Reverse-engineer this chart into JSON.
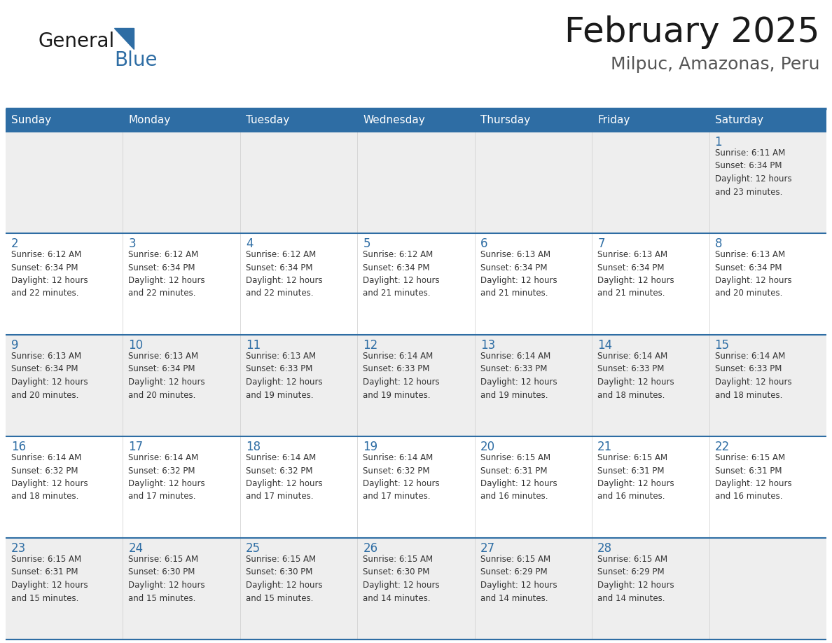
{
  "title": "February 2025",
  "subtitle": "Milpuc, Amazonas, Peru",
  "header_bg_color": "#2E6DA4",
  "header_text_color": "#FFFFFF",
  "cell_bg_even": "#EEEEEE",
  "cell_bg_odd": "#FFFFFF",
  "day_number_color": "#2E6DA4",
  "text_color": "#333333",
  "border_color": "#2E6DA4",
  "days_of_week": [
    "Sunday",
    "Monday",
    "Tuesday",
    "Wednesday",
    "Thursday",
    "Friday",
    "Saturday"
  ],
  "weeks": [
    [
      {
        "day": "",
        "info": ""
      },
      {
        "day": "",
        "info": ""
      },
      {
        "day": "",
        "info": ""
      },
      {
        "day": "",
        "info": ""
      },
      {
        "day": "",
        "info": ""
      },
      {
        "day": "",
        "info": ""
      },
      {
        "day": "1",
        "info": "Sunrise: 6:11 AM\nSunset: 6:34 PM\nDaylight: 12 hours\nand 23 minutes."
      }
    ],
    [
      {
        "day": "2",
        "info": "Sunrise: 6:12 AM\nSunset: 6:34 PM\nDaylight: 12 hours\nand 22 minutes."
      },
      {
        "day": "3",
        "info": "Sunrise: 6:12 AM\nSunset: 6:34 PM\nDaylight: 12 hours\nand 22 minutes."
      },
      {
        "day": "4",
        "info": "Sunrise: 6:12 AM\nSunset: 6:34 PM\nDaylight: 12 hours\nand 22 minutes."
      },
      {
        "day": "5",
        "info": "Sunrise: 6:12 AM\nSunset: 6:34 PM\nDaylight: 12 hours\nand 21 minutes."
      },
      {
        "day": "6",
        "info": "Sunrise: 6:13 AM\nSunset: 6:34 PM\nDaylight: 12 hours\nand 21 minutes."
      },
      {
        "day": "7",
        "info": "Sunrise: 6:13 AM\nSunset: 6:34 PM\nDaylight: 12 hours\nand 21 minutes."
      },
      {
        "day": "8",
        "info": "Sunrise: 6:13 AM\nSunset: 6:34 PM\nDaylight: 12 hours\nand 20 minutes."
      }
    ],
    [
      {
        "day": "9",
        "info": "Sunrise: 6:13 AM\nSunset: 6:34 PM\nDaylight: 12 hours\nand 20 minutes."
      },
      {
        "day": "10",
        "info": "Sunrise: 6:13 AM\nSunset: 6:34 PM\nDaylight: 12 hours\nand 20 minutes."
      },
      {
        "day": "11",
        "info": "Sunrise: 6:13 AM\nSunset: 6:33 PM\nDaylight: 12 hours\nand 19 minutes."
      },
      {
        "day": "12",
        "info": "Sunrise: 6:14 AM\nSunset: 6:33 PM\nDaylight: 12 hours\nand 19 minutes."
      },
      {
        "day": "13",
        "info": "Sunrise: 6:14 AM\nSunset: 6:33 PM\nDaylight: 12 hours\nand 19 minutes."
      },
      {
        "day": "14",
        "info": "Sunrise: 6:14 AM\nSunset: 6:33 PM\nDaylight: 12 hours\nand 18 minutes."
      },
      {
        "day": "15",
        "info": "Sunrise: 6:14 AM\nSunset: 6:33 PM\nDaylight: 12 hours\nand 18 minutes."
      }
    ],
    [
      {
        "day": "16",
        "info": "Sunrise: 6:14 AM\nSunset: 6:32 PM\nDaylight: 12 hours\nand 18 minutes."
      },
      {
        "day": "17",
        "info": "Sunrise: 6:14 AM\nSunset: 6:32 PM\nDaylight: 12 hours\nand 17 minutes."
      },
      {
        "day": "18",
        "info": "Sunrise: 6:14 AM\nSunset: 6:32 PM\nDaylight: 12 hours\nand 17 minutes."
      },
      {
        "day": "19",
        "info": "Sunrise: 6:14 AM\nSunset: 6:32 PM\nDaylight: 12 hours\nand 17 minutes."
      },
      {
        "day": "20",
        "info": "Sunrise: 6:15 AM\nSunset: 6:31 PM\nDaylight: 12 hours\nand 16 minutes."
      },
      {
        "day": "21",
        "info": "Sunrise: 6:15 AM\nSunset: 6:31 PM\nDaylight: 12 hours\nand 16 minutes."
      },
      {
        "day": "22",
        "info": "Sunrise: 6:15 AM\nSunset: 6:31 PM\nDaylight: 12 hours\nand 16 minutes."
      }
    ],
    [
      {
        "day": "23",
        "info": "Sunrise: 6:15 AM\nSunset: 6:31 PM\nDaylight: 12 hours\nand 15 minutes."
      },
      {
        "day": "24",
        "info": "Sunrise: 6:15 AM\nSunset: 6:30 PM\nDaylight: 12 hours\nand 15 minutes."
      },
      {
        "day": "25",
        "info": "Sunrise: 6:15 AM\nSunset: 6:30 PM\nDaylight: 12 hours\nand 15 minutes."
      },
      {
        "day": "26",
        "info": "Sunrise: 6:15 AM\nSunset: 6:30 PM\nDaylight: 12 hours\nand 14 minutes."
      },
      {
        "day": "27",
        "info": "Sunrise: 6:15 AM\nSunset: 6:29 PM\nDaylight: 12 hours\nand 14 minutes."
      },
      {
        "day": "28",
        "info": "Sunrise: 6:15 AM\nSunset: 6:29 PM\nDaylight: 12 hours\nand 14 minutes."
      },
      {
        "day": "",
        "info": ""
      }
    ]
  ],
  "header_fontsize": 11,
  "day_number_fontsize": 12,
  "info_fontsize": 8.5,
  "title_fontsize": 36,
  "subtitle_fontsize": 18
}
